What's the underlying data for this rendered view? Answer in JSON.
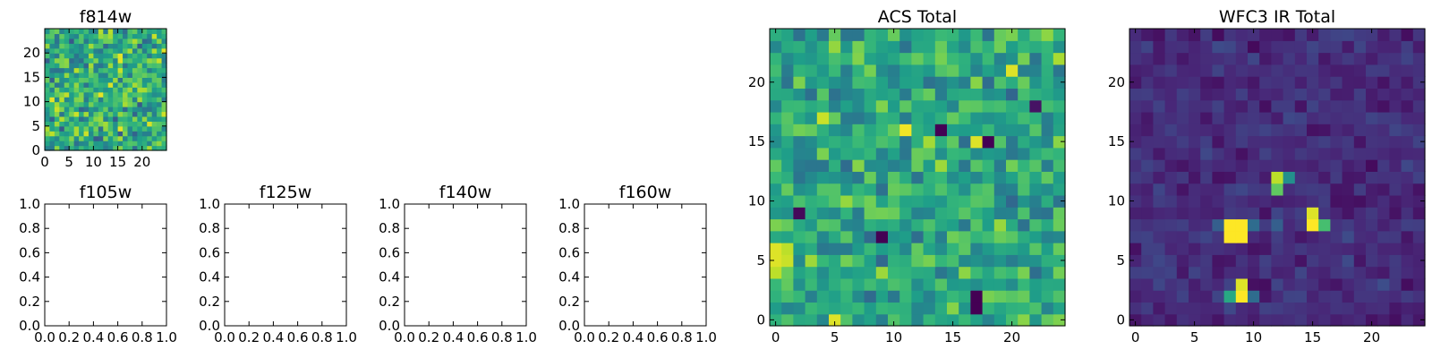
{
  "colormap": {
    "name": "viridis",
    "stops": [
      "#440154",
      "#482878",
      "#3e4a89",
      "#31688e",
      "#26828e",
      "#1f9e89",
      "#35b779",
      "#6ece58",
      "#b5de2b",
      "#fde725"
    ]
  },
  "chart_data": [
    {
      "id": "f814w",
      "type": "heatmap",
      "title": "f814w",
      "grid_size": 25,
      "xlim": [
        0,
        25
      ],
      "ylim": [
        0,
        25
      ],
      "x_ticks": [
        "0",
        "5",
        "10",
        "15",
        "20"
      ],
      "y_ticks": [
        "0",
        "5",
        "10",
        "15",
        "20"
      ],
      "hot_spots": [
        {
          "x": 1,
          "y": 3,
          "value": 0.9
        }
      ],
      "noise_mean": 0.62,
      "noise_spread": 0.26
    },
    {
      "id": "f105w",
      "type": "empty",
      "title": "f105w",
      "xlim": [
        0,
        1
      ],
      "ylim": [
        0,
        1
      ],
      "x_ticks": [
        "0.0",
        "0.2",
        "0.4",
        "0.6",
        "0.8",
        "1.0"
      ],
      "y_ticks": [
        "0.0",
        "0.2",
        "0.4",
        "0.6",
        "0.8",
        "1.0"
      ]
    },
    {
      "id": "f125w",
      "type": "empty",
      "title": "f125w",
      "xlim": [
        0,
        1
      ],
      "ylim": [
        0,
        1
      ],
      "x_ticks": [
        "0.0",
        "0.2",
        "0.4",
        "0.6",
        "0.8",
        "1.0"
      ],
      "y_ticks": [
        "0.0",
        "0.2",
        "0.4",
        "0.6",
        "0.8",
        "1.0"
      ]
    },
    {
      "id": "f140w",
      "type": "empty",
      "title": "f140w",
      "xlim": [
        0,
        1
      ],
      "ylim": [
        0,
        1
      ],
      "x_ticks": [
        "0.0",
        "0.2",
        "0.4",
        "0.6",
        "0.8",
        "1.0"
      ],
      "y_ticks": [
        "0.0",
        "0.2",
        "0.4",
        "0.6",
        "0.8",
        "1.0"
      ]
    },
    {
      "id": "f160w",
      "type": "empty",
      "title": "f160w",
      "xlim": [
        0,
        1
      ],
      "ylim": [
        0,
        1
      ],
      "x_ticks": [
        "0.0",
        "0.2",
        "0.4",
        "0.6",
        "0.8",
        "1.0"
      ],
      "y_ticks": [
        "0.0",
        "0.2",
        "0.4",
        "0.6",
        "0.8",
        "1.0"
      ]
    },
    {
      "id": "acs-total",
      "type": "heatmap",
      "title": "ACS Total",
      "grid_size": 25,
      "xlim": [
        -0.5,
        24.5
      ],
      "ylim": [
        -0.5,
        24.5
      ],
      "x_ticks": [
        "0",
        "5",
        "10",
        "15",
        "20"
      ],
      "y_ticks": [
        "0",
        "5",
        "10",
        "15",
        "20"
      ],
      "hot_spots": [
        {
          "x": 0,
          "y": 6,
          "value": 0.95
        },
        {
          "x": 0,
          "y": 5,
          "value": 0.95
        },
        {
          "x": 0,
          "y": 4,
          "value": 0.9
        },
        {
          "x": 1,
          "y": 5,
          "value": 0.92
        },
        {
          "x": 1,
          "y": 6,
          "value": 0.9
        },
        {
          "x": 11,
          "y": 16,
          "value": 0.98
        },
        {
          "x": 17,
          "y": 15,
          "value": 0.95
        },
        {
          "x": 20,
          "y": 21,
          "value": 0.95
        },
        {
          "x": 5,
          "y": 0,
          "value": 0.95
        },
        {
          "x": 4,
          "y": 17,
          "value": 0.92
        }
      ],
      "cold_spots": [
        {
          "x": 17,
          "y": 2,
          "value": 0.0
        },
        {
          "x": 17,
          "y": 1,
          "value": 0.0
        },
        {
          "x": 14,
          "y": 16,
          "value": 0.0
        },
        {
          "x": 9,
          "y": 7,
          "value": 0.0
        },
        {
          "x": 2,
          "y": 9,
          "value": 0.02
        },
        {
          "x": 18,
          "y": 15,
          "value": 0.0
        },
        {
          "x": 22,
          "y": 18,
          "value": 0.05
        }
      ],
      "noise_mean": 0.6,
      "noise_spread": 0.2
    },
    {
      "id": "wfc3-ir-total",
      "type": "heatmap",
      "title": "WFC3 IR Total",
      "grid_size": 25,
      "xlim": [
        -0.5,
        24.5
      ],
      "ylim": [
        -0.5,
        24.5
      ],
      "x_ticks": [
        "0",
        "5",
        "10",
        "15",
        "20"
      ],
      "y_ticks": [
        "0",
        "5",
        "10",
        "15",
        "20"
      ],
      "hot_spots": [
        {
          "x": 8,
          "y": 7,
          "value": 1.0
        },
        {
          "x": 9,
          "y": 7,
          "value": 1.0
        },
        {
          "x": 8,
          "y": 8,
          "value": 1.0
        },
        {
          "x": 9,
          "y": 8,
          "value": 1.0
        },
        {
          "x": 15,
          "y": 8,
          "value": 1.0
        },
        {
          "x": 15,
          "y": 9,
          "value": 0.95
        },
        {
          "x": 16,
          "y": 8,
          "value": 0.7
        },
        {
          "x": 12,
          "y": 12,
          "value": 0.9
        },
        {
          "x": 12,
          "y": 11,
          "value": 0.75
        },
        {
          "x": 13,
          "y": 12,
          "value": 0.5
        },
        {
          "x": 9,
          "y": 2,
          "value": 1.0
        },
        {
          "x": 9,
          "y": 3,
          "value": 0.95
        },
        {
          "x": 8,
          "y": 2,
          "value": 0.6
        },
        {
          "x": 10,
          "y": 2,
          "value": 0.35
        },
        {
          "x": 7,
          "y": 8,
          "value": 0.3
        },
        {
          "x": 10,
          "y": 8,
          "value": 0.35
        },
        {
          "x": 12,
          "y": 8,
          "value": 0.3
        }
      ],
      "noise_mean": 0.13,
      "noise_spread": 0.08
    }
  ]
}
